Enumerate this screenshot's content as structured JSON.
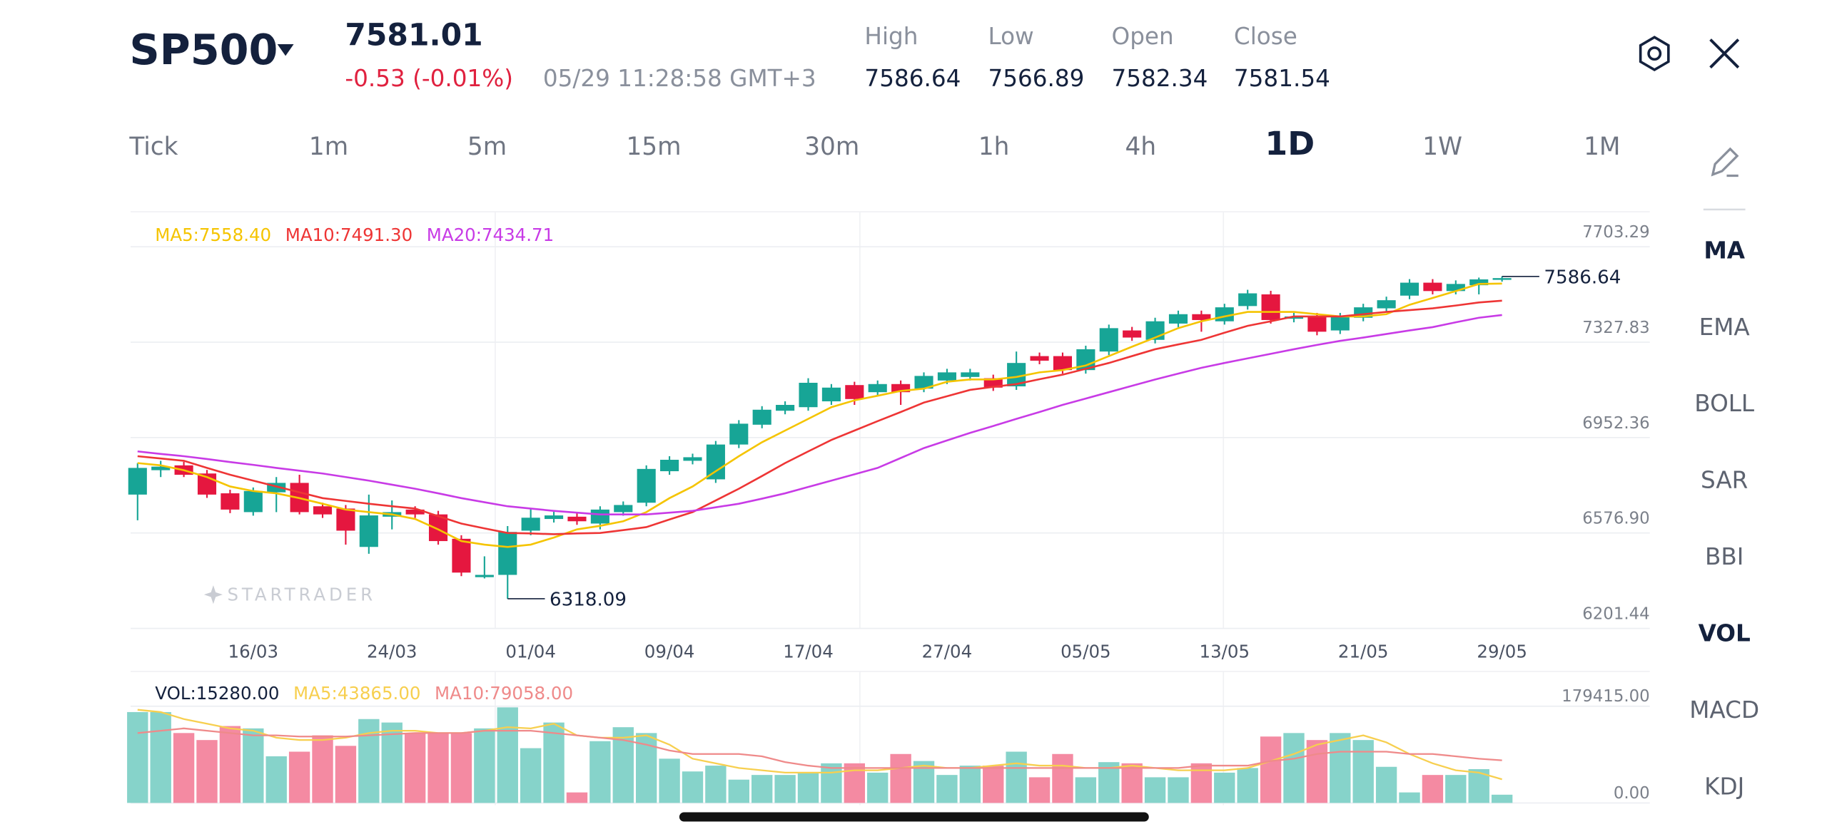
{
  "header": {
    "symbol": "SP500",
    "price": "7581.01",
    "change": "-0.53 (-0.01%)",
    "time": "05/29 11:28:58 GMT+3",
    "stats": [
      {
        "label": "High",
        "value": "7586.64"
      },
      {
        "label": "Low",
        "value": "7566.89"
      },
      {
        "label": "Open",
        "value": "7582.34"
      },
      {
        "label": "Close",
        "value": "7581.54"
      }
    ]
  },
  "timeframes": [
    {
      "label": "Tick",
      "selected": false
    },
    {
      "label": "1m",
      "selected": false
    },
    {
      "label": "5m",
      "selected": false
    },
    {
      "label": "15m",
      "selected": false
    },
    {
      "label": "30m",
      "selected": false
    },
    {
      "label": "1h",
      "selected": false
    },
    {
      "label": "4h",
      "selected": false
    },
    {
      "label": "1D",
      "selected": true
    },
    {
      "label": "1W",
      "selected": false
    },
    {
      "label": "1M",
      "selected": false
    }
  ],
  "indicators": [
    {
      "label": "MA",
      "selected": true
    },
    {
      "label": "EMA",
      "selected": false
    },
    {
      "label": "BOLL",
      "selected": false
    },
    {
      "label": "SAR",
      "selected": false
    },
    {
      "label": "BBI",
      "selected": false
    },
    {
      "label": "VOL",
      "selected": true
    },
    {
      "label": "MACD",
      "selected": false
    },
    {
      "label": "KDJ",
      "selected": false
    }
  ],
  "watermark": "STARTRADER",
  "chart_data": [
    {
      "type": "candlestick",
      "categories": [
        null,
        null,
        null,
        null,
        null,
        "16/03",
        null,
        null,
        null,
        null,
        null,
        "24/03",
        null,
        null,
        null,
        null,
        null,
        "01/04",
        null,
        null,
        null,
        null,
        null,
        "09/04",
        null,
        null,
        null,
        null,
        null,
        "17/04",
        null,
        null,
        null,
        null,
        null,
        "27/04",
        null,
        null,
        null,
        null,
        null,
        "05/05",
        null,
        null,
        null,
        null,
        null,
        "13/05",
        null,
        null,
        null,
        null,
        null,
        "21/05",
        null,
        null,
        null,
        null,
        null,
        "29/05"
      ],
      "open": [
        6728,
        6824,
        6843,
        6811,
        6733,
        6659,
        6737,
        6774,
        6682,
        6673,
        6522,
        6641,
        6669,
        6650,
        6554,
        6403,
        6412,
        6586,
        6632,
        6641,
        6614,
        6659,
        6696,
        6820,
        6861,
        6788,
        6925,
        7003,
        7058,
        7072,
        7095,
        7159,
        7131,
        7163,
        7145,
        7177,
        7191,
        7186,
        7154,
        7273,
        7273,
        7218,
        7291,
        7374,
        7337,
        7401,
        7438,
        7410,
        7470,
        7516,
        7420,
        7429,
        7374,
        7424,
        7461,
        7511,
        7562,
        7529,
        7552,
        7575
      ],
      "high": [
        6852,
        6861,
        6857,
        6825,
        6747,
        6756,
        6797,
        6806,
        6696,
        6687,
        6728,
        6705,
        6682,
        6664,
        6568,
        6485,
        6604,
        6673,
        6660,
        6655,
        6682,
        6701,
        6843,
        6879,
        6889,
        6939,
        7021,
        7076,
        7095,
        7186,
        7163,
        7172,
        7177,
        7177,
        7209,
        7223,
        7223,
        7200,
        7291,
        7287,
        7287,
        7314,
        7397,
        7388,
        7424,
        7452,
        7452,
        7479,
        7534,
        7530,
        7443,
        7443,
        7443,
        7479,
        7507,
        7576,
        7576,
        7571,
        7582,
        7586.64
      ],
      "low": [
        6627,
        6797,
        6797,
        6715,
        6655,
        6645,
        6659,
        6650,
        6636,
        6531,
        6495,
        6591,
        6636,
        6531,
        6407,
        6398,
        6318.09,
        6568,
        6618,
        6609,
        6591,
        6645,
        6682,
        6806,
        6847,
        6774,
        6911,
        6989,
        7044,
        7058,
        7081,
        7081,
        7117,
        7081,
        7131,
        7163,
        7177,
        7136,
        7140,
        7241,
        7204,
        7204,
        7277,
        7333,
        7323,
        7387,
        7369,
        7397,
        7456,
        7401,
        7406,
        7355,
        7360,
        7410,
        7447,
        7497,
        7516,
        7516,
        7516,
        7566
      ],
      "close": [
        6833,
        6838,
        6806,
        6728,
        6669,
        6742,
        6774,
        6659,
        6650,
        6586,
        6646,
        6659,
        6650,
        6545,
        6421,
        6412,
        6581,
        6637,
        6646,
        6623,
        6669,
        6687,
        6829,
        6865,
        6875,
        6925,
        7007,
        7062,
        7081,
        7168,
        7149,
        7104,
        7163,
        7131,
        7195,
        7209,
        7209,
        7149,
        7246,
        7255,
        7218,
        7300,
        7383,
        7346,
        7410,
        7438,
        7415,
        7465,
        7520,
        7415,
        7429,
        7369,
        7429,
        7465,
        7493,
        7562,
        7529,
        7557,
        7575,
        7580
      ],
      "up_color": "#17a596",
      "down_color": "#e5173f",
      "series": [
        {
          "name": "MA5:7558.40",
          "color": "#f5c400",
          "values": [
            6852,
            6843,
            6824,
            6797,
            6760,
            6742,
            6733,
            6714,
            6692,
            6669,
            6659,
            6650,
            6632,
            6591,
            6545,
            6531,
            6522,
            6531,
            6559,
            6591,
            6605,
            6623,
            6659,
            6714,
            6760,
            6820,
            6879,
            6934,
            6980,
            7026,
            7072,
            7099,
            7117,
            7136,
            7145,
            7172,
            7181,
            7181,
            7191,
            7209,
            7218,
            7236,
            7273,
            7310,
            7346,
            7383,
            7410,
            7429,
            7447,
            7447,
            7447,
            7438,
            7429,
            7429,
            7438,
            7475,
            7502,
            7529,
            7557,
            7558.4
          ]
        },
        {
          "name": "MA10:7491.30",
          "color": "#ee3535",
          "values": [
            6879,
            6870,
            6861,
            6833,
            6806,
            6783,
            6760,
            6737,
            6714,
            6703,
            6692,
            6682,
            6673,
            6643,
            6614,
            6595,
            6577,
            6575,
            6572,
            6575,
            6577,
            6588,
            6600,
            6630,
            6659,
            6705,
            6751,
            6801,
            6852,
            6898,
            6943,
            6980,
            7017,
            7053,
            7090,
            7115,
            7140,
            7152,
            7163,
            7182,
            7200,
            7223,
            7246,
            7273,
            7300,
            7319,
            7337,
            7365,
            7392,
            7410,
            7429,
            7429,
            7429,
            7438,
            7447,
            7454,
            7461,
            7472,
            7484,
            7491.3
          ]
        },
        {
          "name": "MA20:7434.71",
          "color": "#c83be6",
          "values": [
            6898,
            6888,
            6879,
            6868,
            6856,
            6845,
            6833,
            6822,
            6811,
            6797,
            6783,
            6767,
            6751,
            6733,
            6714,
            6698,
            6682,
            6673,
            6664,
            6657,
            6650,
            6650,
            6650,
            6657,
            6664,
            6678,
            6692,
            6712,
            6733,
            6758,
            6783,
            6808,
            6833,
            6872,
            6911,
            6941,
            6971,
            6998,
            7026,
            7053,
            7081,
            7106,
            7131,
            7156,
            7181,
            7204,
            7227,
            7246,
            7264,
            7282,
            7300,
            7317,
            7333,
            7346,
            7360,
            7374,
            7387,
            7406,
            7424,
            7434.71
          ]
        }
      ],
      "ylim": [
        6201.44,
        7841
      ],
      "yticks": [
        7703.29,
        7327.83,
        6952.36,
        {
          "value": 6576.9,
          "label": "6576.90"
        },
        6201.44
      ],
      "grid": true
    },
    {
      "type": "bar",
      "name": "VOL:15280.00",
      "up_color": "#86d3ca",
      "down_color": "#f48aa2",
      "values": [
        168600,
        168600,
        129700,
        116700,
        142700,
        138300,
        86500,
        95100,
        125400,
        105900,
        155600,
        149200,
        129700,
        129700,
        129700,
        138300,
        177300,
        101600,
        149200,
        19500,
        114600,
        140500,
        129700,
        82100,
        58400,
        69200,
        43200,
        51900,
        51900,
        56200,
        73500,
        73500,
        56200,
        90800,
        77800,
        51900,
        69200,
        69200,
        95100,
        47600,
        90800,
        47600,
        75700,
        73500,
        47600,
        47600,
        73500,
        56200,
        64800,
        123200,
        129700,
        116700,
        129700,
        116700,
        67000,
        19500,
        51900,
        51900,
        62700,
        15280
      ],
      "series": [
        {
          "name": "MA5:43865.00",
          "color": "#f7cf4f",
          "values": [
            172900,
            168600,
            155600,
            147000,
            138300,
            134000,
            121100,
            116700,
            116700,
            121100,
            129700,
            134000,
            134000,
            129700,
            129700,
            134000,
            140500,
            138300,
            147000,
            125400,
            121100,
            121100,
            125400,
            108100,
            82100,
            73500,
            64800,
            60500,
            56200,
            56200,
            56200,
            60500,
            60500,
            64800,
            69200,
            64800,
            64800,
            69200,
            73500,
            69200,
            69200,
            64800,
            64800,
            69200,
            64800,
            60500,
            60500,
            60500,
            64800,
            77800,
            90800,
            108100,
            116700,
            125400,
            112400,
            90800,
            73500,
            60500,
            56200,
            43865
          ]
        },
        {
          "name": "MA10:79058.00",
          "color": "#ef8a8a",
          "values": [
            129700,
            134000,
            138300,
            134000,
            129700,
            125400,
            125400,
            123200,
            123200,
            123200,
            125400,
            127500,
            129700,
            129700,
            129700,
            134000,
            134000,
            134000,
            129700,
            125400,
            121100,
            116700,
            108100,
            97300,
            90800,
            90800,
            90800,
            86500,
            75700,
            69200,
            64800,
            64800,
            64800,
            64800,
            64800,
            64800,
            64800,
            64800,
            64800,
            64800,
            64800,
            64800,
            64800,
            64800,
            64800,
            64800,
            69200,
            69200,
            69200,
            77800,
            82100,
            90800,
            95100,
            95100,
            95100,
            90800,
            90800,
            86500,
            82100,
            79058
          ]
        }
      ],
      "ylim": [
        0,
        244000
      ],
      "yticks": [
        {
          "value": 179415,
          "label": "179415.00"
        },
        {
          "value": 0,
          "label": "0.00"
        }
      ],
      "grid": true
    }
  ]
}
